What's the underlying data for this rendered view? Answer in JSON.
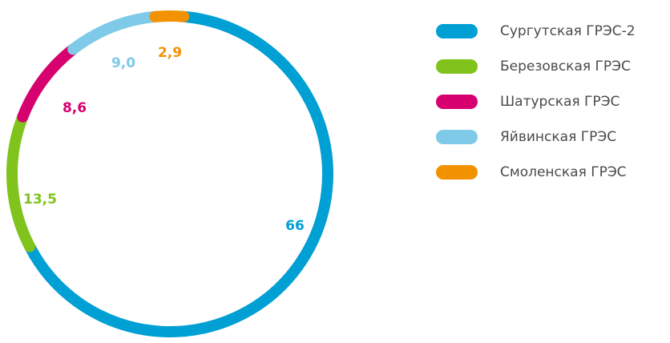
{
  "chart_data": {
    "type": "pie",
    "subtype": "donut-ring",
    "legend_position": "right",
    "series": [
      {
        "name": "Сургутская ГРЭС-2",
        "value": 66,
        "label": "66",
        "color": "#009fd4"
      },
      {
        "name": "Березовская ГРЭС",
        "value": 13.5,
        "label": "13,5",
        "color": "#80c31c"
      },
      {
        "name": "Шатурская ГРЭС",
        "value": 8.6,
        "label": "8,6",
        "color": "#d6006f"
      },
      {
        "name": "Яйвинская ГРЭС",
        "value": 9.0,
        "label": "9,0",
        "color": "#7ecae8"
      },
      {
        "name": "Смоленская ГРЭС",
        "value": 2.9,
        "label": "2,9",
        "color": "#f39200"
      }
    ]
  }
}
